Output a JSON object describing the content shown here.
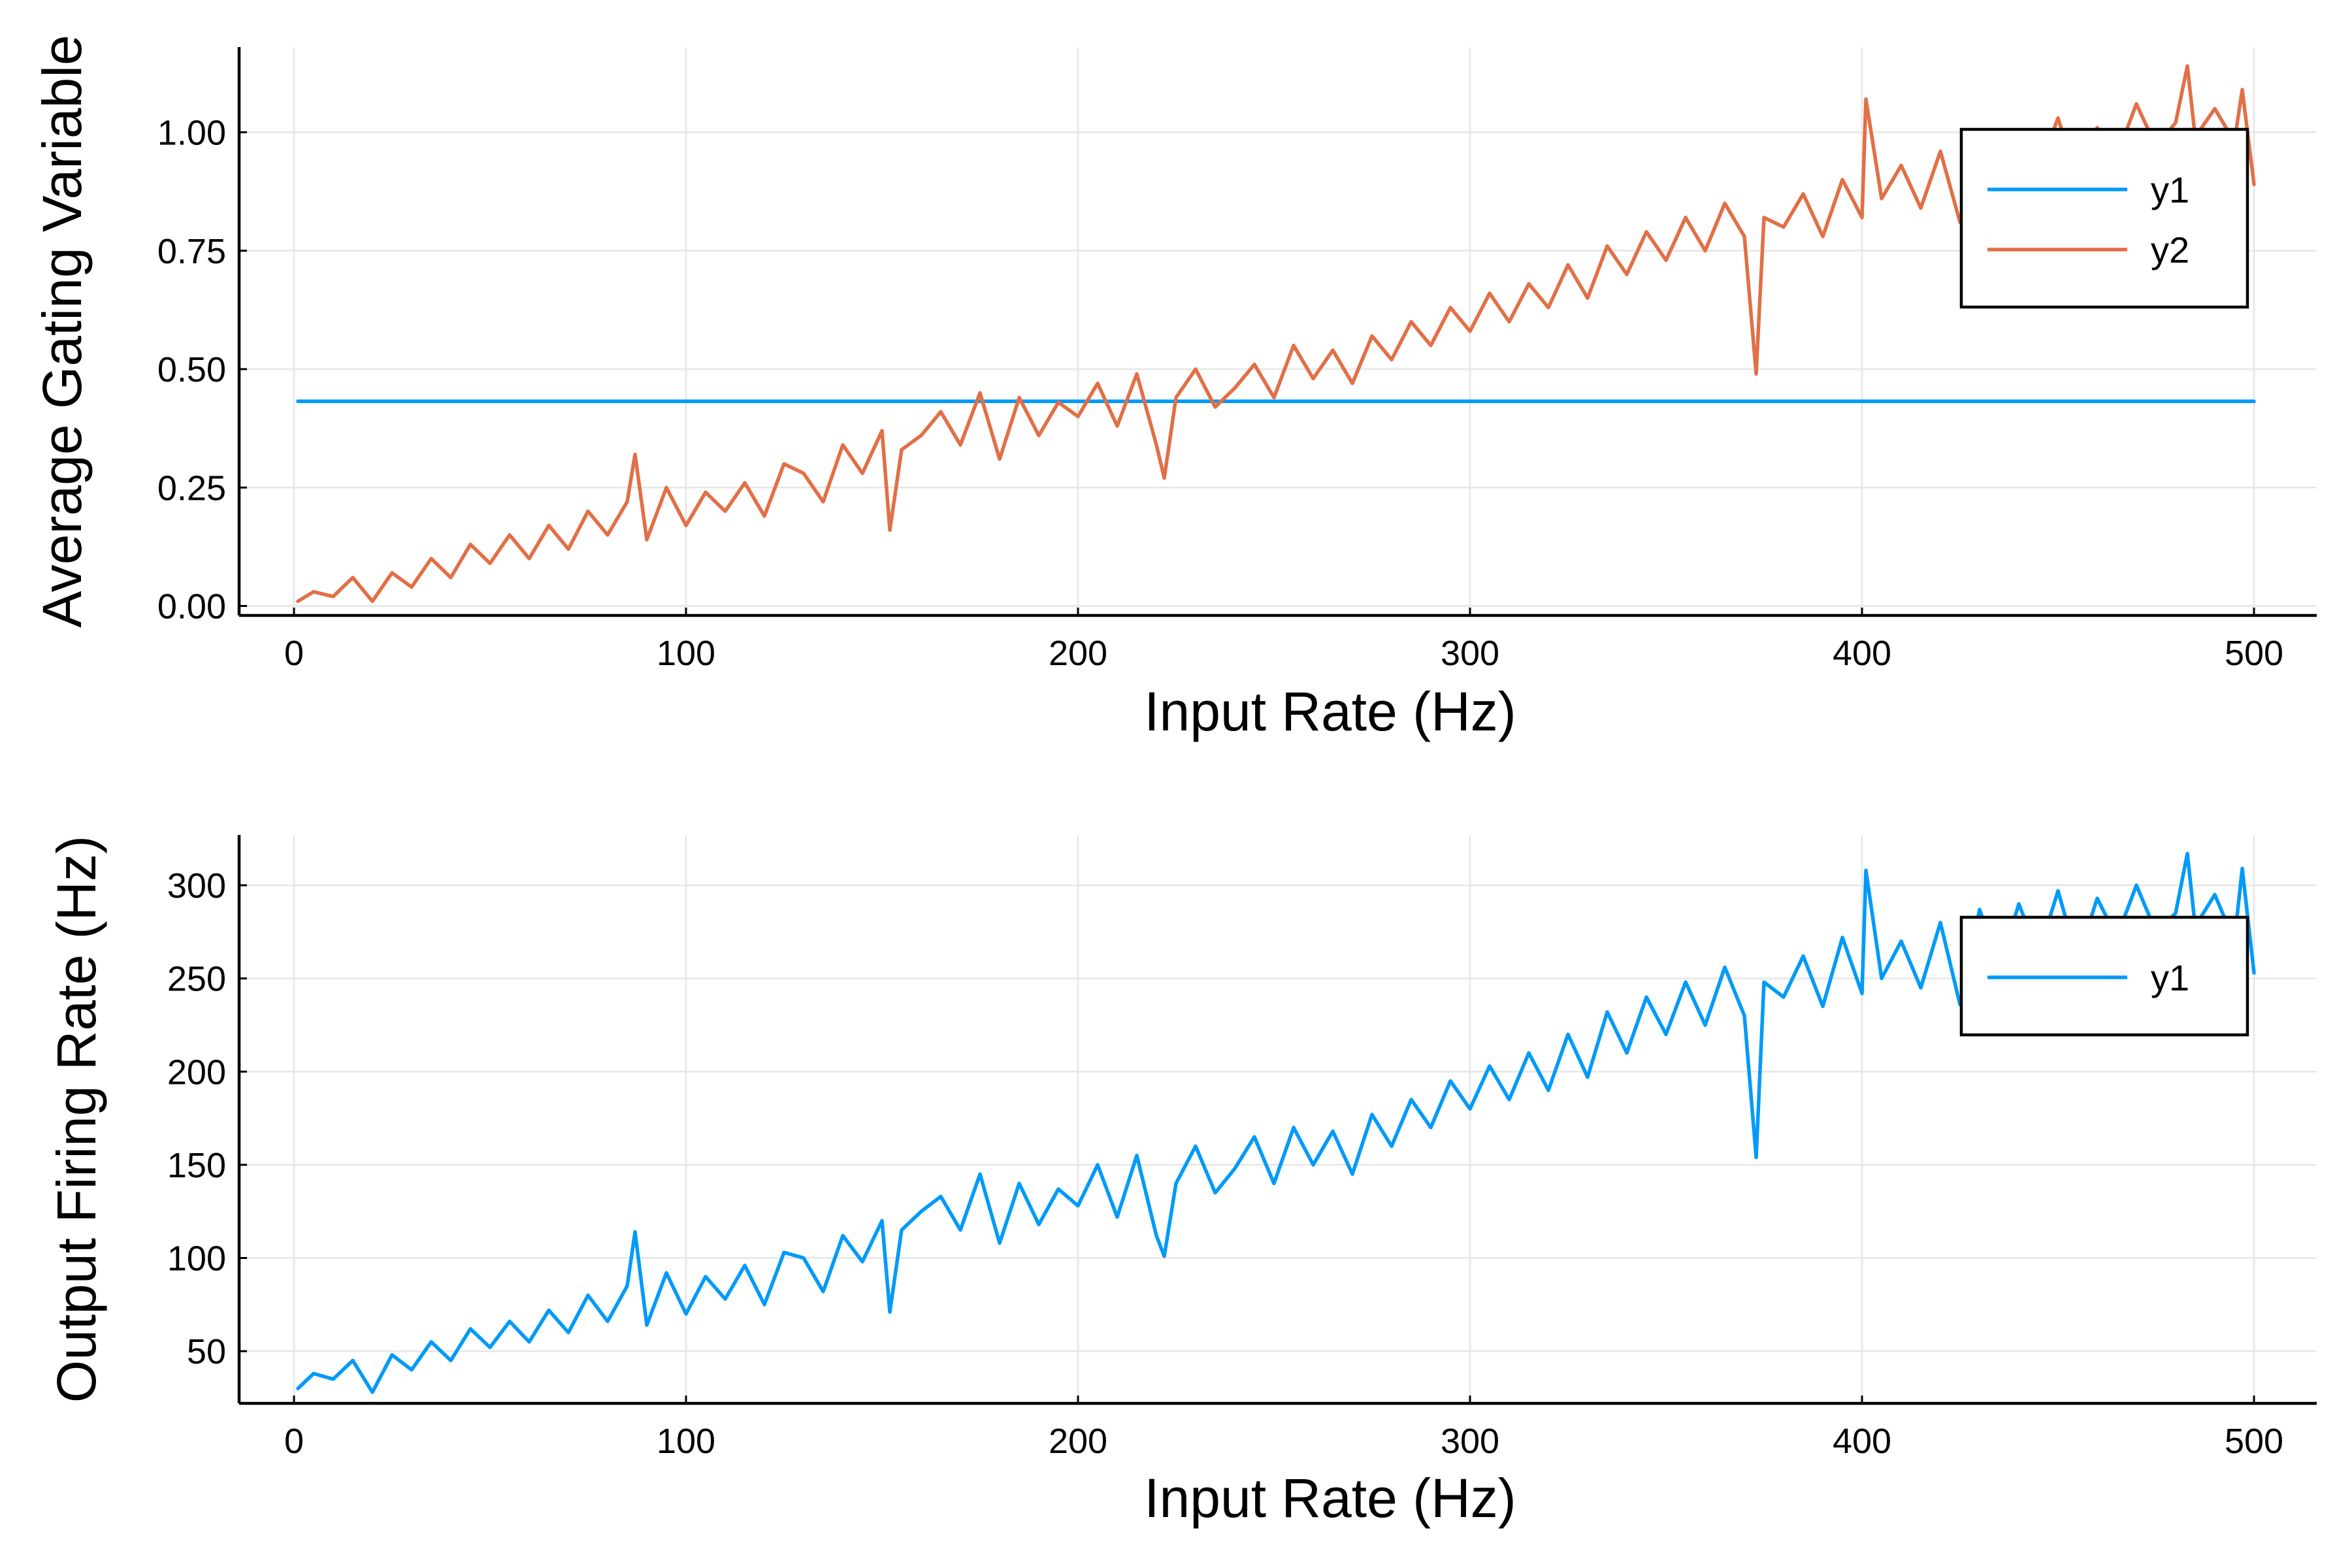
{
  "chart_data": [
    {
      "type": "line",
      "xlabel": "Input Rate (Hz)",
      "ylabel": "Average Gating Variable",
      "xlim": [
        -14,
        516
      ],
      "ylim": [
        -0.02,
        1.18
      ],
      "xticks": [
        0,
        100,
        200,
        300,
        400,
        500
      ],
      "xtick_labels": [
        "0",
        "100",
        "200",
        "300",
        "400",
        "500"
      ],
      "yticks": [
        0,
        0.25,
        0.5,
        0.75,
        1.0
      ],
      "ytick_labels": [
        "0.00",
        "0.25",
        "0.50",
        "0.75",
        "1.00"
      ],
      "grid": true,
      "legend_position": "top-right",
      "series": [
        {
          "name": "y1",
          "color": "#009af9",
          "x": [
            1,
            500
          ],
          "y": [
            0.432,
            0.432
          ]
        },
        {
          "name": "y2",
          "color": "#e26f46",
          "x": [
            1,
            5,
            10,
            15,
            20,
            25,
            30,
            35,
            40,
            45,
            50,
            55,
            60,
            65,
            70,
            75,
            80,
            85,
            87,
            90,
            95,
            100,
            105,
            110,
            115,
            120,
            125,
            130,
            135,
            140,
            145,
            150,
            152,
            155,
            160,
            165,
            170,
            175,
            180,
            185,
            190,
            195,
            200,
            205,
            210,
            215,
            220,
            222,
            225,
            230,
            235,
            240,
            245,
            250,
            255,
            260,
            265,
            270,
            275,
            280,
            285,
            290,
            295,
            300,
            305,
            310,
            315,
            320,
            325,
            330,
            335,
            340,
            345,
            350,
            355,
            360,
            365,
            370,
            373,
            375,
            380,
            385,
            390,
            395,
            400,
            401,
            405,
            410,
            415,
            420,
            425,
            430,
            435,
            440,
            445,
            450,
            455,
            460,
            465,
            470,
            475,
            480,
            483,
            485,
            490,
            495,
            497,
            500
          ],
          "y": [
            0.01,
            0.03,
            0.02,
            0.06,
            0.01,
            0.07,
            0.04,
            0.1,
            0.06,
            0.13,
            0.09,
            0.15,
            0.1,
            0.17,
            0.12,
            0.2,
            0.15,
            0.22,
            0.32,
            0.14,
            0.25,
            0.17,
            0.24,
            0.2,
            0.26,
            0.19,
            0.3,
            0.28,
            0.22,
            0.34,
            0.28,
            0.37,
            0.16,
            0.33,
            0.36,
            0.41,
            0.34,
            0.45,
            0.31,
            0.44,
            0.36,
            0.43,
            0.4,
            0.47,
            0.38,
            0.49,
            0.34,
            0.27,
            0.44,
            0.5,
            0.42,
            0.46,
            0.51,
            0.44,
            0.55,
            0.48,
            0.54,
            0.47,
            0.57,
            0.52,
            0.6,
            0.55,
            0.63,
            0.58,
            0.66,
            0.6,
            0.68,
            0.63,
            0.72,
            0.65,
            0.76,
            0.7,
            0.79,
            0.73,
            0.82,
            0.75,
            0.85,
            0.78,
            0.49,
            0.82,
            0.8,
            0.87,
            0.78,
            0.9,
            0.82,
            1.07,
            0.86,
            0.93,
            0.84,
            0.96,
            0.81,
            0.99,
            0.88,
            1.0,
            0.92,
            1.03,
            0.9,
            1.01,
            0.95,
            1.06,
            0.97,
            1.02,
            1.14,
            0.99,
            1.05,
            0.98,
            1.09,
            0.89
          ]
        }
      ]
    },
    {
      "type": "line",
      "xlabel": "Input Rate (Hz)",
      "ylabel": "Output Firing Rate (Hz)",
      "xlim": [
        -14,
        516
      ],
      "ylim": [
        22,
        327
      ],
      "xticks": [
        0,
        100,
        200,
        300,
        400,
        500
      ],
      "xtick_labels": [
        "0",
        "100",
        "200",
        "300",
        "400",
        "500"
      ],
      "yticks": [
        50,
        100,
        150,
        200,
        250,
        300
      ],
      "ytick_labels": [
        "50",
        "100",
        "150",
        "200",
        "250",
        "300"
      ],
      "grid": true,
      "legend_position": "top-right",
      "series": [
        {
          "name": "y1",
          "color": "#009af9",
          "x": [
            1,
            5,
            10,
            15,
            20,
            25,
            30,
            35,
            40,
            45,
            50,
            55,
            60,
            65,
            70,
            75,
            80,
            85,
            87,
            90,
            95,
            100,
            105,
            110,
            115,
            120,
            125,
            130,
            135,
            140,
            145,
            150,
            152,
            155,
            160,
            165,
            170,
            175,
            180,
            185,
            190,
            195,
            200,
            205,
            210,
            215,
            220,
            222,
            225,
            230,
            235,
            240,
            245,
            250,
            255,
            260,
            265,
            270,
            275,
            280,
            285,
            290,
            295,
            300,
            305,
            310,
            315,
            320,
            325,
            330,
            335,
            340,
            345,
            350,
            355,
            360,
            365,
            370,
            373,
            375,
            380,
            385,
            390,
            395,
            400,
            401,
            405,
            410,
            415,
            420,
            425,
            430,
            435,
            440,
            445,
            450,
            455,
            460,
            465,
            470,
            475,
            480,
            483,
            485,
            490,
            495,
            497,
            500
          ],
          "y": [
            30,
            38,
            35,
            45,
            28,
            48,
            40,
            55,
            45,
            62,
            52,
            66,
            55,
            72,
            60,
            80,
            66,
            85,
            114,
            64,
            92,
            70,
            90,
            78,
            96,
            75,
            103,
            100,
            82,
            112,
            98,
            120,
            71,
            115,
            125,
            133,
            115,
            145,
            108,
            140,
            118,
            137,
            128,
            150,
            122,
            155,
            112,
            101,
            140,
            160,
            135,
            148,
            165,
            140,
            170,
            150,
            168,
            145,
            177,
            160,
            185,
            170,
            195,
            180,
            203,
            185,
            210,
            190,
            220,
            197,
            232,
            210,
            240,
            220,
            248,
            225,
            256,
            230,
            154,
            248,
            240,
            262,
            235,
            272,
            242,
            308,
            250,
            270,
            245,
            280,
            236,
            287,
            255,
            290,
            263,
            297,
            260,
            293,
            272,
            300,
            275,
            285,
            317,
            278,
            295,
            270,
            309,
            253
          ]
        }
      ]
    }
  ]
}
